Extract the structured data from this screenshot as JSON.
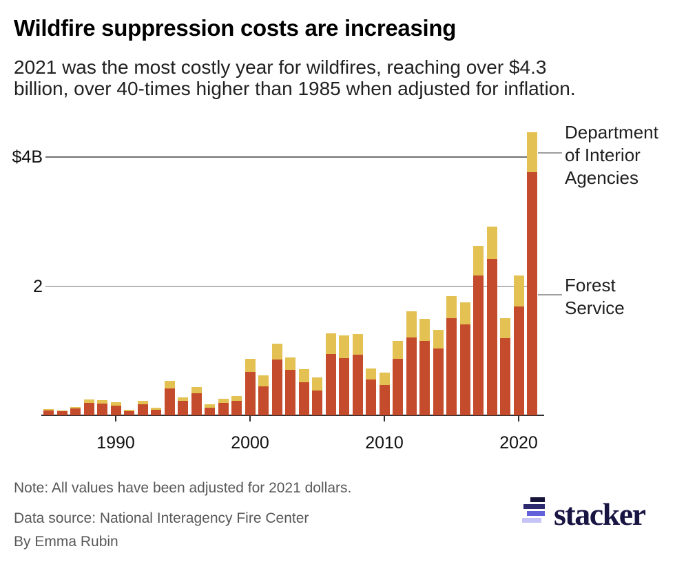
{
  "header": {
    "title": "Wildfire suppression costs are increasing",
    "subtitle_lines": [
      "2021 was the most costly year for wildfires, reaching over $4.3",
      "billion, over 40-times higher than 1985 when adjusted for inflation."
    ]
  },
  "chart_data": {
    "type": "bar",
    "stacked": true,
    "title": "Wildfire suppression costs are increasing",
    "unit": "billions of US dollars (2021 dollars)",
    "x": [
      1985,
      1986,
      1987,
      1988,
      1989,
      1990,
      1991,
      1992,
      1993,
      1994,
      1995,
      1996,
      1997,
      1998,
      1999,
      2000,
      2001,
      2002,
      2003,
      2004,
      2005,
      2006,
      2007,
      2008,
      2009,
      2010,
      2011,
      2012,
      2013,
      2014,
      2015,
      2016,
      2017,
      2018,
      2019,
      2020,
      2021
    ],
    "series": [
      {
        "name": "Forest Service",
        "color": "#c44b2c",
        "values": [
          0.07,
          0.06,
          0.11,
          0.19,
          0.18,
          0.15,
          0.06,
          0.17,
          0.09,
          0.42,
          0.22,
          0.34,
          0.12,
          0.19,
          0.22,
          0.67,
          0.45,
          0.86,
          0.7,
          0.51,
          0.38,
          0.95,
          0.89,
          0.94,
          0.56,
          0.47,
          0.88,
          1.21,
          1.15,
          1.04,
          1.5,
          1.41,
          2.17,
          2.42,
          1.19,
          1.69,
          3.77
        ]
      },
      {
        "name": "Department of Interior Agencies",
        "color": "#e3c152",
        "values": [
          0.03,
          0.02,
          0.02,
          0.06,
          0.05,
          0.05,
          0.03,
          0.05,
          0.03,
          0.11,
          0.06,
          0.1,
          0.05,
          0.07,
          0.08,
          0.21,
          0.17,
          0.25,
          0.2,
          0.2,
          0.21,
          0.32,
          0.35,
          0.32,
          0.17,
          0.19,
          0.27,
          0.4,
          0.34,
          0.28,
          0.35,
          0.34,
          0.46,
          0.5,
          0.31,
          0.48,
          0.62
        ]
      }
    ],
    "ylim": [
      0,
      4.5
    ],
    "yticks": [
      {
        "value": 4,
        "label": "$4B"
      },
      {
        "value": 2,
        "label": "2"
      }
    ],
    "xticks": [
      1990,
      2000,
      2010,
      2020
    ],
    "grid": "horizontal",
    "legend_position": "right-annotations"
  },
  "annotations": {
    "doi": {
      "lines": [
        "Department",
        "of Interior",
        "Agencies"
      ]
    },
    "fs": {
      "lines": [
        "Forest",
        "Service"
      ]
    }
  },
  "footer": {
    "note": "Note: All values have been adjusted for 2021 dollars.",
    "source": "Data source: National Interagency Fire Center",
    "byline": "By Emma Rubin"
  },
  "logo": {
    "wordmark": "stacker"
  }
}
